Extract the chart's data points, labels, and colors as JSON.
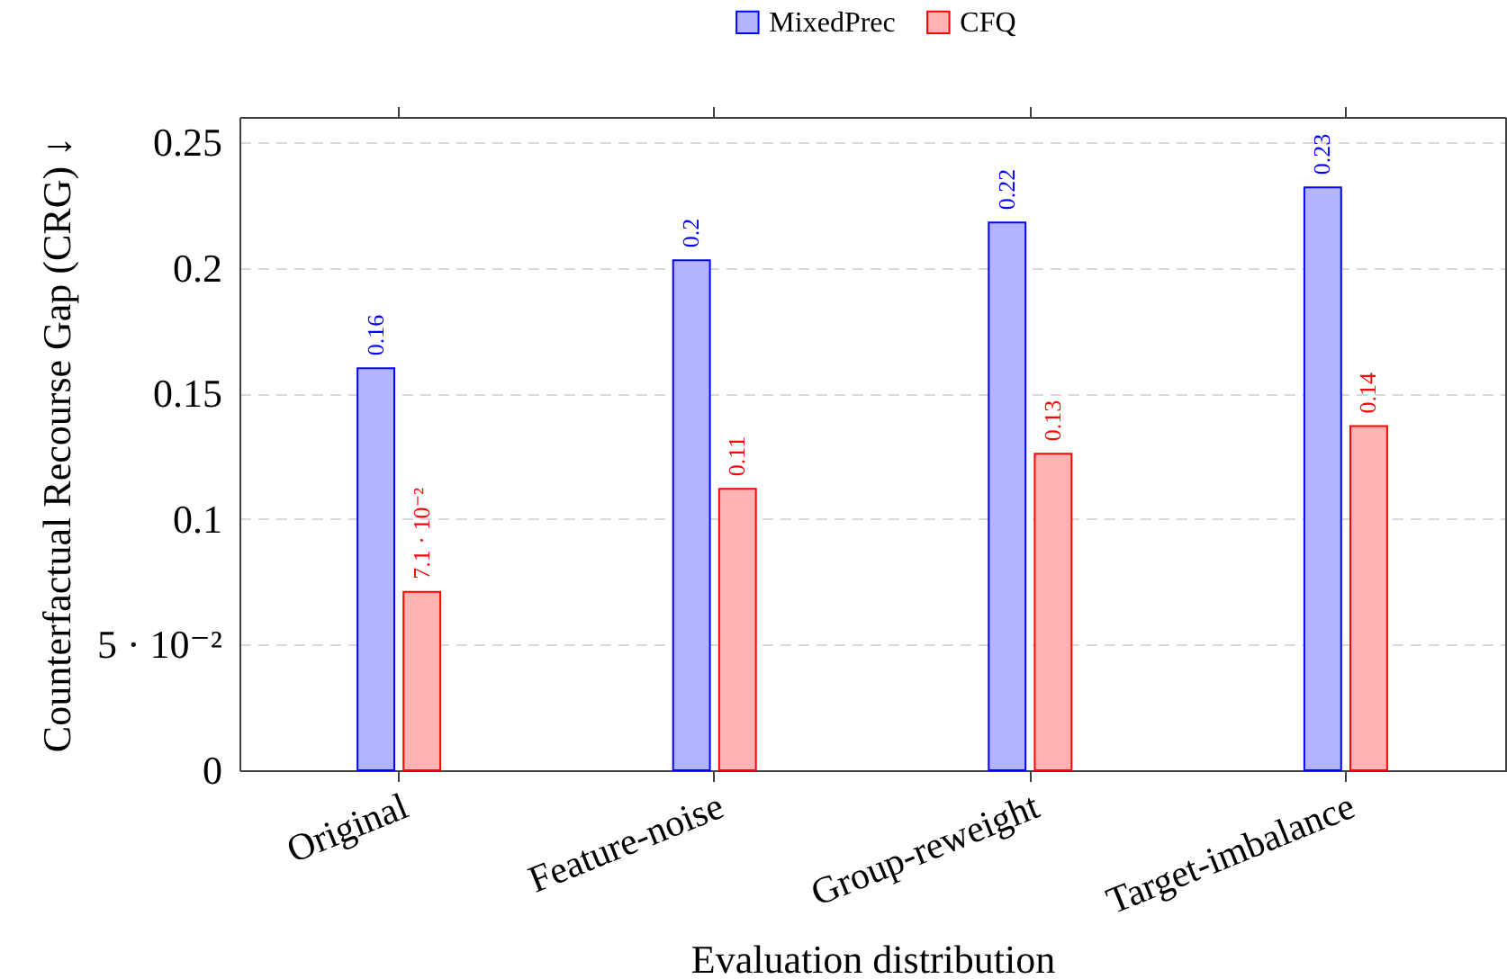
{
  "chart_data": {
    "type": "bar",
    "xlabel": "Evaluation distribution",
    "ylabel": "Counterfactual Recourse Gap (CRG) ↓",
    "categories": [
      "Original",
      "Feature-noise",
      "Group-reweight",
      "Target-imbalance"
    ],
    "series": [
      {
        "name": "MixedPrec",
        "color": "#b3b3ff",
        "values": [
          0.16,
          0.203,
          0.218,
          0.232
        ],
        "value_labels": [
          "0.16",
          "0.2",
          "0.22",
          "0.23"
        ]
      },
      {
        "name": "CFQ",
        "color": "#ffb3b3",
        "values": [
          0.071,
          0.112,
          0.126,
          0.137
        ],
        "value_labels": [
          "7.1 · 10⁻²",
          "0.11",
          "0.13",
          "0.14"
        ]
      }
    ],
    "ylim": [
      0,
      0.26
    ],
    "yticks": [
      0,
      {
        "value": 0.05,
        "label": "5 · 10⁻²"
      },
      0.1,
      0.15,
      0.2,
      0.25
    ],
    "grid": "y",
    "legend": "top"
  }
}
